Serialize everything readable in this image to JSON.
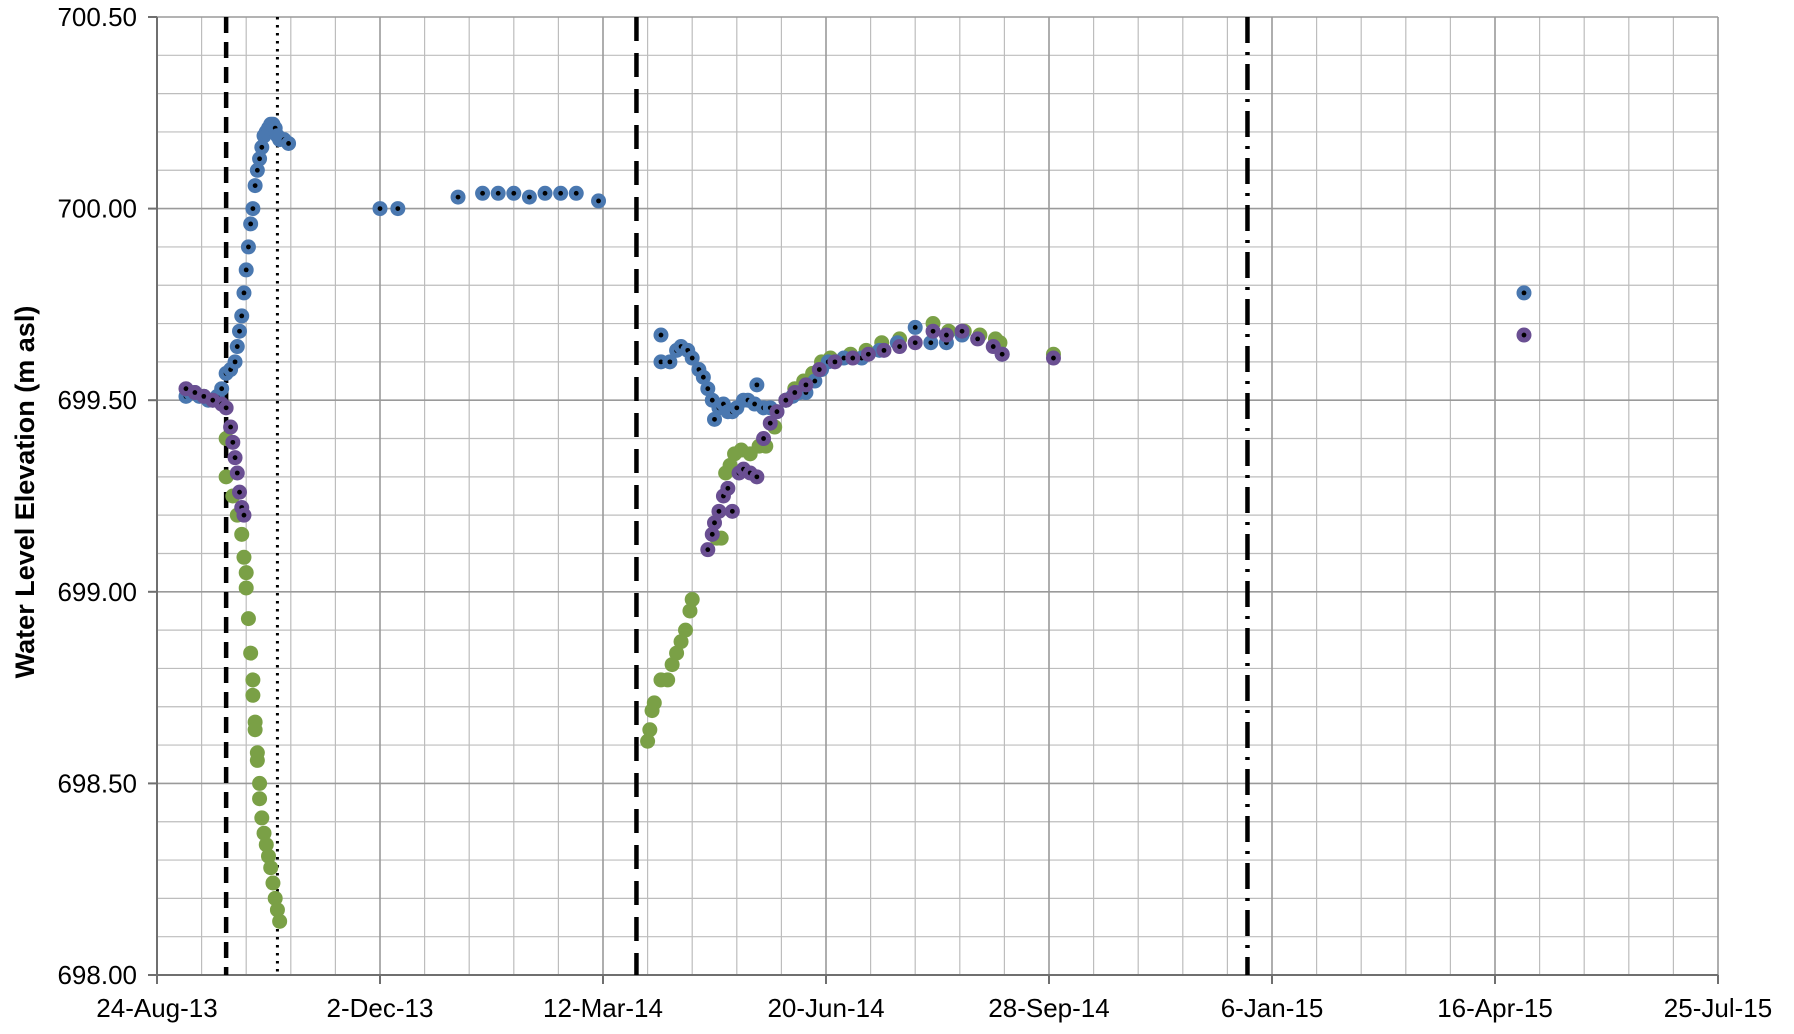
{
  "chart_data": {
    "type": "scatter",
    "title": "",
    "ylabel": "Water Level Elevation (m asl)",
    "xlabel": "",
    "x_axis": "date",
    "xlim": [
      "2013-08-24",
      "2015-07-25"
    ],
    "ylim": [
      698.0,
      700.5
    ],
    "grid": true,
    "legend": "none",
    "x_ticks": [
      "24-Aug-13",
      "2-Dec-13",
      "12-Mar-14",
      "20-Jun-14",
      "28-Sep-14",
      "6-Jan-15",
      "16-Apr-15",
      "25-Jul-15"
    ],
    "y_ticks": [
      "698.00",
      "698.50",
      "699.00",
      "699.50",
      "700.00",
      "700.50"
    ],
    "colors": {
      "blue": "#4a78b0",
      "green": "#7aa046",
      "purple": "#6a4f92",
      "grid": "#9a9a9a",
      "axis": "#6f6f6f",
      "marker_dot": "#000000"
    },
    "vertical_lines": [
      {
        "x": "2013-09-24",
        "style": "dashed"
      },
      {
        "x": "2013-10-17",
        "style": "dotted"
      },
      {
        "x": "2014-03-27",
        "style": "long-dashed"
      },
      {
        "x": "2014-12-26",
        "style": "dash-dot"
      }
    ],
    "series": [
      {
        "color": "blue",
        "inner_dot": true,
        "points": [
          [
            "2013-09-06",
            699.51
          ],
          [
            "2013-09-08",
            699.52
          ],
          [
            "2013-09-10",
            699.52
          ],
          [
            "2013-09-12",
            699.51
          ],
          [
            "2013-09-14",
            699.51
          ],
          [
            "2013-09-16",
            699.5
          ],
          [
            "2013-09-18",
            699.5
          ],
          [
            "2013-09-20",
            699.51
          ],
          [
            "2013-09-22",
            699.53
          ],
          [
            "2013-09-24",
            699.57
          ],
          [
            "2013-09-26",
            699.58
          ],
          [
            "2013-09-28",
            699.6
          ],
          [
            "2013-09-29",
            699.64
          ],
          [
            "2013-09-30",
            699.68
          ],
          [
            "2013-10-01",
            699.72
          ],
          [
            "2013-10-02",
            699.78
          ],
          [
            "2013-10-03",
            699.84
          ],
          [
            "2013-10-04",
            699.9
          ],
          [
            "2013-10-05",
            699.96
          ],
          [
            "2013-10-06",
            700.0
          ],
          [
            "2013-10-07",
            700.06
          ],
          [
            "2013-10-08",
            700.1
          ],
          [
            "2013-10-09",
            700.13
          ],
          [
            "2013-10-10",
            700.16
          ],
          [
            "2013-10-11",
            700.19
          ],
          [
            "2013-10-12",
            700.2
          ],
          [
            "2013-10-13",
            700.21
          ],
          [
            "2013-10-14",
            700.22
          ],
          [
            "2013-10-15",
            700.22
          ],
          [
            "2013-10-16",
            700.21
          ],
          [
            "2013-10-17",
            700.19
          ],
          [
            "2013-10-18",
            700.18
          ],
          [
            "2013-10-20",
            700.18
          ],
          [
            "2013-10-22",
            700.17
          ],
          [
            "2013-12-02",
            700.0
          ],
          [
            "2013-12-10",
            700.0
          ],
          [
            "2014-01-06",
            700.03
          ],
          [
            "2014-01-17",
            700.04
          ],
          [
            "2014-01-24",
            700.04
          ],
          [
            "2014-01-31",
            700.04
          ],
          [
            "2014-02-07",
            700.03
          ],
          [
            "2014-02-14",
            700.04
          ],
          [
            "2014-02-21",
            700.04
          ],
          [
            "2014-02-28",
            700.04
          ],
          [
            "2014-03-10",
            700.02
          ],
          [
            "2014-04-07",
            699.67
          ],
          [
            "2014-04-07",
            699.6
          ],
          [
            "2014-04-11",
            699.6
          ],
          [
            "2014-04-14",
            699.63
          ],
          [
            "2014-04-16",
            699.64
          ],
          [
            "2014-04-19",
            699.63
          ],
          [
            "2014-04-21",
            699.61
          ],
          [
            "2014-04-24",
            699.58
          ],
          [
            "2014-04-26",
            699.56
          ],
          [
            "2014-04-28",
            699.53
          ],
          [
            "2014-04-30",
            699.5
          ],
          [
            "2014-05-01",
            699.45
          ],
          [
            "2014-05-03",
            699.48
          ],
          [
            "2014-05-05",
            699.49
          ],
          [
            "2014-05-07",
            699.47
          ],
          [
            "2014-05-09",
            699.47
          ],
          [
            "2014-05-11",
            699.48
          ],
          [
            "2014-05-14",
            699.5
          ],
          [
            "2014-05-16",
            699.5
          ],
          [
            "2014-05-19",
            699.49
          ],
          [
            "2014-05-20",
            699.54
          ],
          [
            "2014-05-23",
            699.48
          ],
          [
            "2014-05-26",
            699.48
          ],
          [
            "2014-05-29",
            699.47
          ],
          [
            "2014-06-02",
            699.5
          ],
          [
            "2014-06-05",
            699.51
          ],
          [
            "2014-06-08",
            699.52
          ],
          [
            "2014-06-11",
            699.52
          ],
          [
            "2014-06-15",
            699.55
          ],
          [
            "2014-06-18",
            699.58
          ],
          [
            "2014-06-21",
            699.6
          ],
          [
            "2014-06-28",
            699.61
          ],
          [
            "2014-07-06",
            699.61
          ],
          [
            "2014-07-14",
            699.63
          ],
          [
            "2014-07-22",
            699.65
          ],
          [
            "2014-07-30",
            699.69
          ],
          [
            "2014-08-06",
            699.65
          ],
          [
            "2014-08-13",
            699.65
          ],
          [
            "2014-08-20",
            699.67
          ],
          [
            "2014-09-07",
            699.62
          ],
          [
            "2015-04-29",
            699.78
          ]
        ]
      },
      {
        "color": "green",
        "inner_dot": false,
        "points": [
          [
            "2013-09-08",
            699.52
          ],
          [
            "2013-09-14",
            699.51
          ],
          [
            "2013-09-20",
            699.5
          ],
          [
            "2013-09-24",
            699.4
          ],
          [
            "2013-09-24",
            699.3
          ],
          [
            "2013-09-27",
            699.25
          ],
          [
            "2013-09-29",
            699.2
          ],
          [
            "2013-10-01",
            699.15
          ],
          [
            "2013-10-02",
            699.09
          ],
          [
            "2013-10-03",
            699.05
          ],
          [
            "2013-10-03",
            699.01
          ],
          [
            "2013-10-04",
            698.93
          ],
          [
            "2013-10-05",
            698.84
          ],
          [
            "2013-10-06",
            698.77
          ],
          [
            "2013-10-06",
            698.73
          ],
          [
            "2013-10-07",
            698.66
          ],
          [
            "2013-10-07",
            698.64
          ],
          [
            "2013-10-08",
            698.58
          ],
          [
            "2013-10-08",
            698.56
          ],
          [
            "2013-10-09",
            698.5
          ],
          [
            "2013-10-09",
            698.46
          ],
          [
            "2013-10-10",
            698.41
          ],
          [
            "2013-10-11",
            698.37
          ],
          [
            "2013-10-12",
            698.34
          ],
          [
            "2013-10-13",
            698.31
          ],
          [
            "2013-10-14",
            698.28
          ],
          [
            "2013-10-15",
            698.24
          ],
          [
            "2013-10-16",
            698.2
          ],
          [
            "2013-10-17",
            698.17
          ],
          [
            "2013-10-18",
            698.14
          ],
          [
            "2014-04-01",
            698.61
          ],
          [
            "2014-04-02",
            698.64
          ],
          [
            "2014-04-03",
            698.69
          ],
          [
            "2014-04-04",
            698.71
          ],
          [
            "2014-04-07",
            698.77
          ],
          [
            "2014-04-10",
            698.77
          ],
          [
            "2014-04-12",
            698.81
          ],
          [
            "2014-04-14",
            698.84
          ],
          [
            "2014-04-16",
            698.87
          ],
          [
            "2014-04-18",
            698.9
          ],
          [
            "2014-04-20",
            698.95
          ],
          [
            "2014-04-21",
            698.98
          ],
          [
            "2014-05-02",
            699.14
          ],
          [
            "2014-05-04",
            699.14
          ],
          [
            "2014-05-06",
            699.31
          ],
          [
            "2014-05-08",
            699.33
          ],
          [
            "2014-05-10",
            699.36
          ],
          [
            "2014-05-13",
            699.37
          ],
          [
            "2014-05-17",
            699.36
          ],
          [
            "2014-05-21",
            699.38
          ],
          [
            "2014-05-24",
            699.38
          ],
          [
            "2014-05-28",
            699.43
          ],
          [
            "2014-06-02",
            699.5
          ],
          [
            "2014-06-06",
            699.53
          ],
          [
            "2014-06-10",
            699.55
          ],
          [
            "2014-06-14",
            699.57
          ],
          [
            "2014-06-18",
            699.6
          ],
          [
            "2014-06-22",
            699.61
          ],
          [
            "2014-07-01",
            699.62
          ],
          [
            "2014-07-08",
            699.63
          ],
          [
            "2014-07-15",
            699.65
          ],
          [
            "2014-07-23",
            699.66
          ],
          [
            "2014-08-07",
            699.7
          ],
          [
            "2014-08-14",
            699.68
          ],
          [
            "2014-08-21",
            699.68
          ],
          [
            "2014-08-28",
            699.67
          ],
          [
            "2014-09-04",
            699.66
          ],
          [
            "2014-09-06",
            699.65
          ],
          [
            "2014-09-30",
            699.62
          ]
        ]
      },
      {
        "color": "purple",
        "inner_dot": true,
        "points": [
          [
            "2013-09-06",
            699.53
          ],
          [
            "2013-09-10",
            699.52
          ],
          [
            "2013-09-14",
            699.51
          ],
          [
            "2013-09-18",
            699.5
          ],
          [
            "2013-09-22",
            699.49
          ],
          [
            "2013-09-24",
            699.48
          ],
          [
            "2013-09-26",
            699.43
          ],
          [
            "2013-09-27",
            699.39
          ],
          [
            "2013-09-28",
            699.35
          ],
          [
            "2013-09-29",
            699.31
          ],
          [
            "2013-09-30",
            699.26
          ],
          [
            "2013-10-01",
            699.22
          ],
          [
            "2013-10-02",
            699.2
          ],
          [
            "2014-04-28",
            699.11
          ],
          [
            "2014-04-30",
            699.15
          ],
          [
            "2014-05-01",
            699.18
          ],
          [
            "2014-05-03",
            699.21
          ],
          [
            "2014-05-05",
            699.25
          ],
          [
            "2014-05-07",
            699.27
          ],
          [
            "2014-05-09",
            699.21
          ],
          [
            "2014-05-12",
            699.31
          ],
          [
            "2014-05-14",
            699.32
          ],
          [
            "2014-05-17",
            699.31
          ],
          [
            "2014-05-20",
            699.3
          ],
          [
            "2014-05-23",
            699.4
          ],
          [
            "2014-05-26",
            699.44
          ],
          [
            "2014-05-29",
            699.47
          ],
          [
            "2014-06-02",
            699.5
          ],
          [
            "2014-06-06",
            699.52
          ],
          [
            "2014-06-11",
            699.54
          ],
          [
            "2014-06-17",
            699.58
          ],
          [
            "2014-06-24",
            699.6
          ],
          [
            "2014-07-02",
            699.61
          ],
          [
            "2014-07-09",
            699.62
          ],
          [
            "2014-07-16",
            699.63
          ],
          [
            "2014-07-23",
            699.64
          ],
          [
            "2014-07-30",
            699.65
          ],
          [
            "2014-08-07",
            699.68
          ],
          [
            "2014-08-13",
            699.67
          ],
          [
            "2014-08-20",
            699.68
          ],
          [
            "2014-08-27",
            699.66
          ],
          [
            "2014-09-03",
            699.64
          ],
          [
            "2014-09-07",
            699.62
          ],
          [
            "2014-09-30",
            699.61
          ],
          [
            "2015-04-29",
            699.67
          ]
        ]
      }
    ]
  }
}
